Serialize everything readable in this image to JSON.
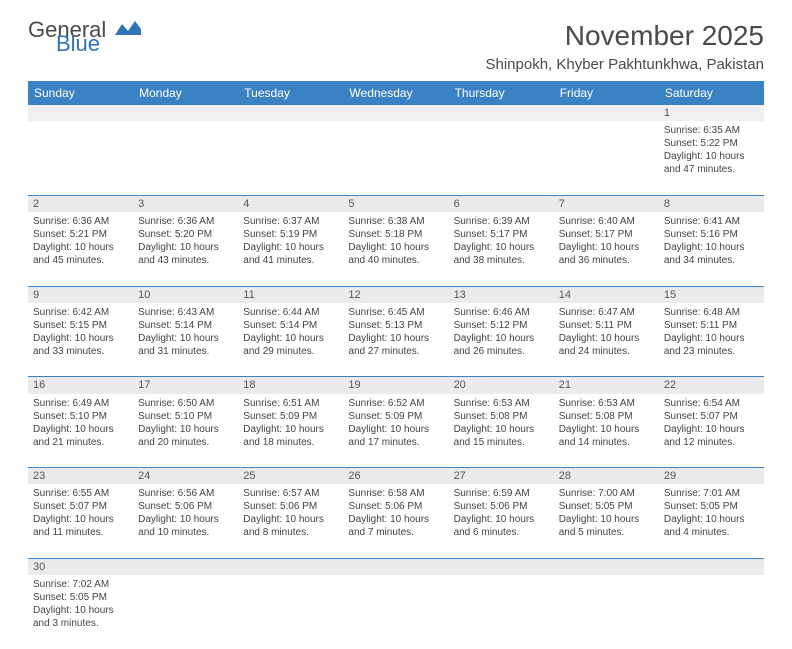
{
  "logo": {
    "line1": "General",
    "line2": "Blue",
    "icon_color": "#2f74b5"
  },
  "title": "November 2025",
  "location": "Shinpokh, Khyber Pakhtunkhwa, Pakistan",
  "colors": {
    "header_bg": "#3b82c4",
    "header_fg": "#ffffff",
    "daynum_bg": "#ebebeb",
    "rule": "#3b82c4"
  },
  "day_labels": [
    "Sunday",
    "Monday",
    "Tuesday",
    "Wednesday",
    "Thursday",
    "Friday",
    "Saturday"
  ],
  "weeks": [
    [
      null,
      null,
      null,
      null,
      null,
      null,
      {
        "n": "1",
        "sr": "Sunrise: 6:35 AM",
        "ss": "Sunset: 5:22 PM",
        "d1": "Daylight: 10 hours",
        "d2": "and 47 minutes."
      }
    ],
    [
      {
        "n": "2",
        "sr": "Sunrise: 6:36 AM",
        "ss": "Sunset: 5:21 PM",
        "d1": "Daylight: 10 hours",
        "d2": "and 45 minutes."
      },
      {
        "n": "3",
        "sr": "Sunrise: 6:36 AM",
        "ss": "Sunset: 5:20 PM",
        "d1": "Daylight: 10 hours",
        "d2": "and 43 minutes."
      },
      {
        "n": "4",
        "sr": "Sunrise: 6:37 AM",
        "ss": "Sunset: 5:19 PM",
        "d1": "Daylight: 10 hours",
        "d2": "and 41 minutes."
      },
      {
        "n": "5",
        "sr": "Sunrise: 6:38 AM",
        "ss": "Sunset: 5:18 PM",
        "d1": "Daylight: 10 hours",
        "d2": "and 40 minutes."
      },
      {
        "n": "6",
        "sr": "Sunrise: 6:39 AM",
        "ss": "Sunset: 5:17 PM",
        "d1": "Daylight: 10 hours",
        "d2": "and 38 minutes."
      },
      {
        "n": "7",
        "sr": "Sunrise: 6:40 AM",
        "ss": "Sunset: 5:17 PM",
        "d1": "Daylight: 10 hours",
        "d2": "and 36 minutes."
      },
      {
        "n": "8",
        "sr": "Sunrise: 6:41 AM",
        "ss": "Sunset: 5:16 PM",
        "d1": "Daylight: 10 hours",
        "d2": "and 34 minutes."
      }
    ],
    [
      {
        "n": "9",
        "sr": "Sunrise: 6:42 AM",
        "ss": "Sunset: 5:15 PM",
        "d1": "Daylight: 10 hours",
        "d2": "and 33 minutes."
      },
      {
        "n": "10",
        "sr": "Sunrise: 6:43 AM",
        "ss": "Sunset: 5:14 PM",
        "d1": "Daylight: 10 hours",
        "d2": "and 31 minutes."
      },
      {
        "n": "11",
        "sr": "Sunrise: 6:44 AM",
        "ss": "Sunset: 5:14 PM",
        "d1": "Daylight: 10 hours",
        "d2": "and 29 minutes."
      },
      {
        "n": "12",
        "sr": "Sunrise: 6:45 AM",
        "ss": "Sunset: 5:13 PM",
        "d1": "Daylight: 10 hours",
        "d2": "and 27 minutes."
      },
      {
        "n": "13",
        "sr": "Sunrise: 6:46 AM",
        "ss": "Sunset: 5:12 PM",
        "d1": "Daylight: 10 hours",
        "d2": "and 26 minutes."
      },
      {
        "n": "14",
        "sr": "Sunrise: 6:47 AM",
        "ss": "Sunset: 5:11 PM",
        "d1": "Daylight: 10 hours",
        "d2": "and 24 minutes."
      },
      {
        "n": "15",
        "sr": "Sunrise: 6:48 AM",
        "ss": "Sunset: 5:11 PM",
        "d1": "Daylight: 10 hours",
        "d2": "and 23 minutes."
      }
    ],
    [
      {
        "n": "16",
        "sr": "Sunrise: 6:49 AM",
        "ss": "Sunset: 5:10 PM",
        "d1": "Daylight: 10 hours",
        "d2": "and 21 minutes."
      },
      {
        "n": "17",
        "sr": "Sunrise: 6:50 AM",
        "ss": "Sunset: 5:10 PM",
        "d1": "Daylight: 10 hours",
        "d2": "and 20 minutes."
      },
      {
        "n": "18",
        "sr": "Sunrise: 6:51 AM",
        "ss": "Sunset: 5:09 PM",
        "d1": "Daylight: 10 hours",
        "d2": "and 18 minutes."
      },
      {
        "n": "19",
        "sr": "Sunrise: 6:52 AM",
        "ss": "Sunset: 5:09 PM",
        "d1": "Daylight: 10 hours",
        "d2": "and 17 minutes."
      },
      {
        "n": "20",
        "sr": "Sunrise: 6:53 AM",
        "ss": "Sunset: 5:08 PM",
        "d1": "Daylight: 10 hours",
        "d2": "and 15 minutes."
      },
      {
        "n": "21",
        "sr": "Sunrise: 6:53 AM",
        "ss": "Sunset: 5:08 PM",
        "d1": "Daylight: 10 hours",
        "d2": "and 14 minutes."
      },
      {
        "n": "22",
        "sr": "Sunrise: 6:54 AM",
        "ss": "Sunset: 5:07 PM",
        "d1": "Daylight: 10 hours",
        "d2": "and 12 minutes."
      }
    ],
    [
      {
        "n": "23",
        "sr": "Sunrise: 6:55 AM",
        "ss": "Sunset: 5:07 PM",
        "d1": "Daylight: 10 hours",
        "d2": "and 11 minutes."
      },
      {
        "n": "24",
        "sr": "Sunrise: 6:56 AM",
        "ss": "Sunset: 5:06 PM",
        "d1": "Daylight: 10 hours",
        "d2": "and 10 minutes."
      },
      {
        "n": "25",
        "sr": "Sunrise: 6:57 AM",
        "ss": "Sunset: 5:06 PM",
        "d1": "Daylight: 10 hours",
        "d2": "and 8 minutes."
      },
      {
        "n": "26",
        "sr": "Sunrise: 6:58 AM",
        "ss": "Sunset: 5:06 PM",
        "d1": "Daylight: 10 hours",
        "d2": "and 7 minutes."
      },
      {
        "n": "27",
        "sr": "Sunrise: 6:59 AM",
        "ss": "Sunset: 5:06 PM",
        "d1": "Daylight: 10 hours",
        "d2": "and 6 minutes."
      },
      {
        "n": "28",
        "sr": "Sunrise: 7:00 AM",
        "ss": "Sunset: 5:05 PM",
        "d1": "Daylight: 10 hours",
        "d2": "and 5 minutes."
      },
      {
        "n": "29",
        "sr": "Sunrise: 7:01 AM",
        "ss": "Sunset: 5:05 PM",
        "d1": "Daylight: 10 hours",
        "d2": "and 4 minutes."
      }
    ],
    [
      {
        "n": "30",
        "sr": "Sunrise: 7:02 AM",
        "ss": "Sunset: 5:05 PM",
        "d1": "Daylight: 10 hours",
        "d2": "and 3 minutes."
      },
      null,
      null,
      null,
      null,
      null,
      null
    ]
  ]
}
